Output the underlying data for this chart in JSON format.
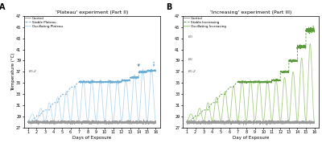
{
  "panel_A_title": "'Plateau' experiment (Part II)",
  "panel_B_title": "'Increasing' experiment (Part III)",
  "panel_A_label": "A",
  "panel_B_label": "B",
  "ylabel": "Temperature (°C)",
  "xlabel_A": "Days of Exposure",
  "xlabel_B": "Day of Exposure",
  "ylim": [
    27,
    47
  ],
  "yticks": [
    27,
    29,
    31,
    33,
    35,
    37,
    39,
    41,
    43,
    45,
    47
  ],
  "xlim": [
    0.5,
    16.5
  ],
  "xticks": [
    1,
    2,
    3,
    4,
    5,
    6,
    7,
    8,
    9,
    10,
    11,
    12,
    13,
    14,
    15,
    16
  ],
  "control_color": "#999999",
  "stable_A_color": "#6aaed6",
  "oscillating_A_color": "#b8d9ee",
  "stable_B_color": "#5a9a3a",
  "oscillating_B_color": "#a8cc88",
  "arrow_color_A": "#4488bb",
  "arrow_color_B": "#4a8a30",
  "B12_label_A": "B₁-2",
  "B3_label": "B₃",
  "B2_label": "B₂",
  "B12_label_B": "B₁-2",
  "legend_A": [
    "Control",
    "Stable Plateau",
    "Oscillating Plateau"
  ],
  "legend_B": [
    "Control",
    "Stable Increasing",
    "Oscillating Increasing"
  ],
  "figsize": [
    4.0,
    1.78
  ],
  "dpi": 100
}
